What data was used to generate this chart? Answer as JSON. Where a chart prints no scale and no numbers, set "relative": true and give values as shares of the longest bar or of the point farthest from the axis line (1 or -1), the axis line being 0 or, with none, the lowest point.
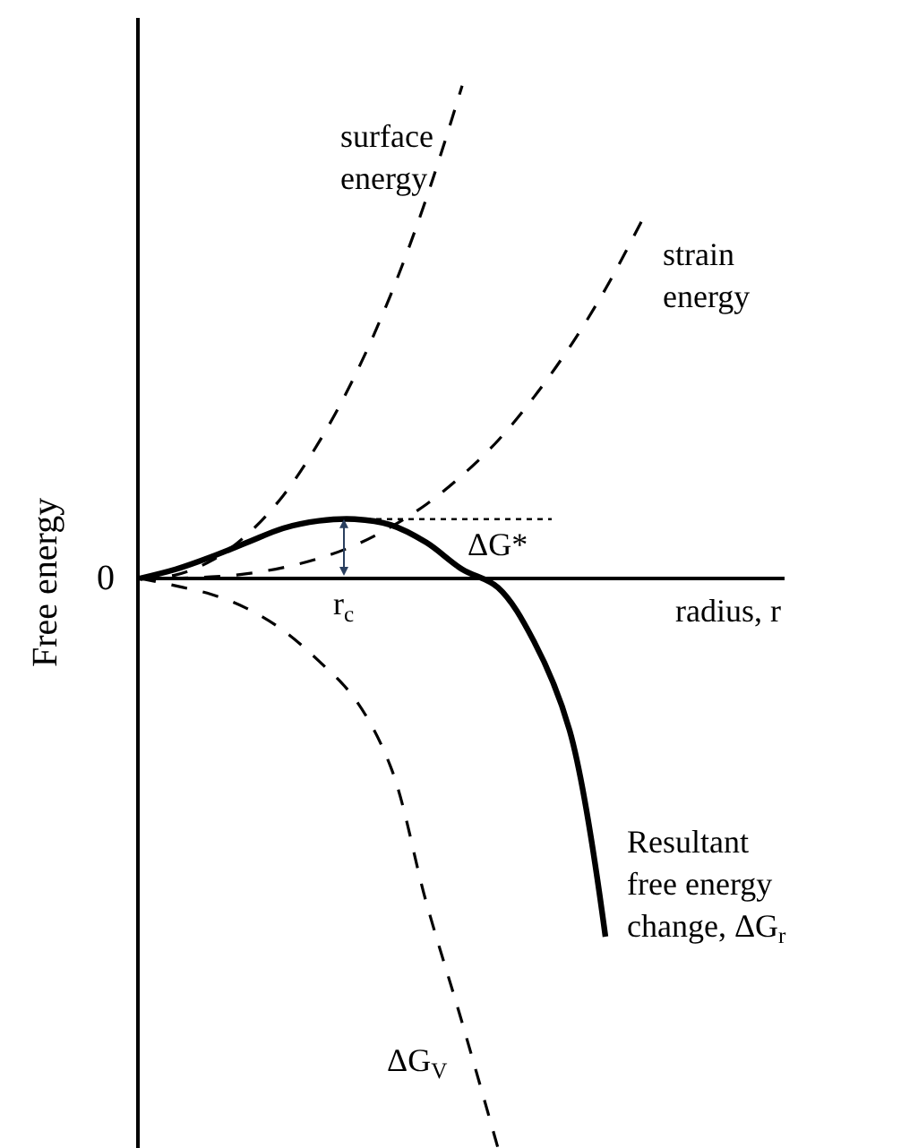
{
  "chart_data": {
    "type": "line",
    "relative": true,
    "ylabel": "Free energy",
    "xlabel": "radius, r",
    "legend": false,
    "categories": [
      null,
      null,
      null,
      null,
      null,
      null,
      null,
      null,
      null,
      null,
      null,
      null,
      null,
      null,
      null,
      null,
      null,
      null,
      null
    ],
    "series": [
      {
        "name": "surface energy",
        "color": "#000000",
        "line_style": "dashed",
        "values": [
          0,
          0.006,
          0.031,
          0.077,
          0.145,
          0.239,
          0.355,
          0.497,
          0.667,
          0.865,
          null,
          null,
          null,
          null,
          null,
          null,
          null,
          null,
          null
        ]
      },
      {
        "name": "strain energy",
        "color": "#000000",
        "line_style": "dashed",
        "values": [
          0,
          0.0004,
          0.0027,
          0.0082,
          0.019,
          0.035,
          0.058,
          0.09,
          0.13,
          0.181,
          0.242,
          0.318,
          0.406,
          0.508,
          0.626,
          null,
          null,
          null,
          null
        ]
      },
      {
        "name": "ΔG$_{V}$",
        "color": "#000000",
        "line_style": "dashed",
        "values": [
          0,
          -0.013,
          -0.028,
          -0.053,
          -0.091,
          -0.145,
          -0.211,
          -0.33,
          -0.569,
          -0.78,
          -1,
          null,
          null,
          null,
          null,
          null,
          null,
          null,
          null
        ]
      },
      {
        "name": "Resultant free energy change, ΔG$_{r}$",
        "color": "#000000",
        "line_style": "solid",
        "values": [
          0,
          0.016,
          0.038,
          0.063,
          0.088,
          0.101,
          0.104,
          0.094,
          0.063,
          0.016,
          -0.016,
          -0.11,
          -0.267,
          -0.629,
          null,
          null,
          null,
          null,
          null
        ]
      }
    ],
    "ref_lines": [
      {
        "axis": "y",
        "value": 0.104,
        "label": "ΔG*",
        "line_style": "dotted",
        "color": "#000000"
      }
    ],
    "annotations": [
      "0",
      "r$_{c}$"
    ]
  }
}
